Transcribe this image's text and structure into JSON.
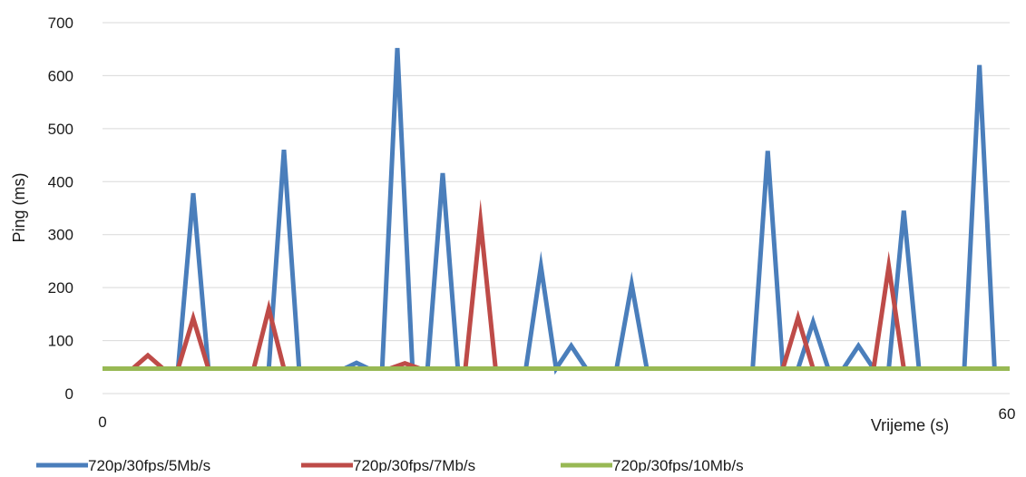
{
  "chart_data": {
    "type": "line",
    "title": "",
    "xlabel": "Vrijeme (s)",
    "ylabel": "Ping (ms)",
    "xlim": [
      0,
      60
    ],
    "ylim": [
      0,
      700
    ],
    "x_tick_labels": [
      "0",
      "60"
    ],
    "y_ticks": [
      0,
      100,
      200,
      300,
      400,
      500,
      600,
      700
    ],
    "grid": "horizontal",
    "legend_position": "bottom",
    "series": [
      {
        "name": "720p/30fps/5Mb/s",
        "color": "#4a7ebb",
        "points": [
          [
            0,
            47
          ],
          [
            5,
            47
          ],
          [
            6,
            378
          ],
          [
            7,
            47
          ],
          [
            11,
            47
          ],
          [
            12,
            460
          ],
          [
            13,
            47
          ],
          [
            16,
            47
          ],
          [
            16.8,
            58
          ],
          [
            17.6,
            47
          ],
          [
            18.5,
            47
          ],
          [
            19.5,
            652
          ],
          [
            20.5,
            47
          ],
          [
            21.5,
            47
          ],
          [
            22.5,
            416
          ],
          [
            23.5,
            47
          ],
          [
            28,
            47
          ],
          [
            29,
            240
          ],
          [
            30,
            47
          ],
          [
            31,
            90
          ],
          [
            32,
            47
          ],
          [
            34,
            47
          ],
          [
            35,
            206
          ],
          [
            36,
            47
          ],
          [
            43,
            47
          ],
          [
            44,
            458
          ],
          [
            45,
            47
          ],
          [
            46,
            47
          ],
          [
            47,
            135
          ],
          [
            48,
            47
          ],
          [
            49,
            47
          ],
          [
            50,
            90
          ],
          [
            51,
            47
          ],
          [
            52,
            47
          ],
          [
            53,
            345
          ],
          [
            54,
            47
          ],
          [
            57,
            47
          ],
          [
            58,
            620
          ],
          [
            59,
            47
          ],
          [
            60,
            47
          ]
        ]
      },
      {
        "name": "720p/30fps/7Mb/s",
        "color": "#be4b48",
        "points": [
          [
            0,
            47
          ],
          [
            2,
            47
          ],
          [
            3,
            72
          ],
          [
            4,
            47
          ],
          [
            5,
            47
          ],
          [
            6,
            142
          ],
          [
            7,
            47
          ],
          [
            10,
            47
          ],
          [
            11,
            160
          ],
          [
            12,
            47
          ],
          [
            19,
            47
          ],
          [
            20,
            57
          ],
          [
            21,
            47
          ],
          [
            24,
            47
          ],
          [
            25,
            325
          ],
          [
            26,
            47
          ],
          [
            45,
            47
          ],
          [
            46,
            143
          ],
          [
            47,
            47
          ],
          [
            51,
            47
          ],
          [
            52,
            240
          ],
          [
            53,
            47
          ],
          [
            60,
            47
          ]
        ]
      },
      {
        "name": "720p/30fps/10Mb/s",
        "color": "#98b954",
        "points": [
          [
            0,
            47
          ],
          [
            60,
            47
          ]
        ]
      }
    ]
  }
}
